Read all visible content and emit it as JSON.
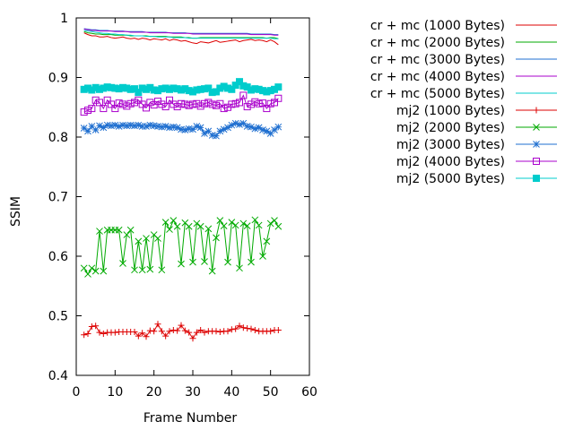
{
  "chart_data": {
    "type": "line",
    "title": "",
    "xlabel": "Frame Number",
    "ylabel": "SSIM",
    "xlim": [
      0,
      60
    ],
    "ylim": [
      0.4,
      1.0
    ],
    "x_ticks": [
      0,
      10,
      20,
      30,
      40,
      50,
      60
    ],
    "y_ticks": [
      0.4,
      0.5,
      0.6,
      0.7,
      0.8,
      0.9,
      1
    ],
    "x_tick_labels": [
      "0",
      "10",
      "20",
      "30",
      "40",
      "50",
      "60"
    ],
    "y_tick_labels": [
      "0.4",
      "0.5",
      "0.6",
      "0.7",
      "0.8",
      "0.9",
      "1"
    ],
    "grid": false,
    "legend_position": "top-right, outside plot",
    "x": [
      2,
      3,
      4,
      5,
      6,
      7,
      8,
      9,
      10,
      11,
      12,
      13,
      14,
      15,
      16,
      17,
      18,
      19,
      20,
      21,
      22,
      23,
      24,
      25,
      26,
      27,
      28,
      29,
      30,
      31,
      32,
      33,
      34,
      35,
      36,
      37,
      38,
      39,
      40,
      41,
      42,
      43,
      44,
      45,
      46,
      47,
      48,
      49,
      50,
      51,
      52
    ],
    "series": [
      {
        "name": "cr + mc (1000 Bytes)",
        "color": "#dd0000",
        "marker": "none",
        "values": [
          0.975,
          0.972,
          0.97,
          0.97,
          0.968,
          0.968,
          0.969,
          0.967,
          0.966,
          0.967,
          0.968,
          0.966,
          0.965,
          0.966,
          0.964,
          0.966,
          0.965,
          0.963,
          0.965,
          0.964,
          0.963,
          0.965,
          0.962,
          0.964,
          0.963,
          0.961,
          0.962,
          0.96,
          0.958,
          0.957,
          0.96,
          0.959,
          0.958,
          0.96,
          0.962,
          0.959,
          0.96,
          0.961,
          0.962,
          0.963,
          0.96,
          0.962,
          0.963,
          0.964,
          0.962,
          0.963,
          0.962,
          0.96,
          0.963,
          0.96,
          0.955
        ]
      },
      {
        "name": "cr + mc (2000 Bytes)",
        "color": "#00aa00",
        "marker": "none",
        "values": [
          0.977,
          0.975,
          0.974,
          0.973,
          0.973,
          0.972,
          0.972,
          0.972,
          0.971,
          0.971,
          0.971,
          0.971,
          0.97,
          0.97,
          0.97,
          0.97,
          0.97,
          0.969,
          0.969,
          0.969,
          0.969,
          0.969,
          0.968,
          0.968,
          0.968,
          0.968,
          0.967,
          0.967,
          0.966,
          0.966,
          0.967,
          0.967,
          0.967,
          0.967,
          0.967,
          0.967,
          0.967,
          0.967,
          0.967,
          0.967,
          0.967,
          0.967,
          0.967,
          0.967,
          0.967,
          0.967,
          0.967,
          0.966,
          0.967,
          0.967,
          0.965
        ]
      },
      {
        "name": "cr + mc (3000 Bytes)",
        "color": "#1f6fd0",
        "marker": "none",
        "values": [
          0.982,
          0.981,
          0.98,
          0.98,
          0.979,
          0.979,
          0.979,
          0.978,
          0.978,
          0.978,
          0.978,
          0.977,
          0.977,
          0.977,
          0.977,
          0.977,
          0.976,
          0.976,
          0.976,
          0.976,
          0.976,
          0.976,
          0.975,
          0.975,
          0.975,
          0.975,
          0.975,
          0.974,
          0.974,
          0.974,
          0.974,
          0.974,
          0.974,
          0.974,
          0.974,
          0.974,
          0.974,
          0.974,
          0.974,
          0.974,
          0.974,
          0.974,
          0.974,
          0.973,
          0.973,
          0.973,
          0.973,
          0.973,
          0.973,
          0.972,
          0.972
        ]
      },
      {
        "name": "cr + mc (4000 Bytes)",
        "color": "#aa00cc",
        "marker": "none",
        "values": [
          0.981,
          0.98,
          0.979,
          0.979,
          0.978,
          0.978,
          0.978,
          0.978,
          0.977,
          0.977,
          0.977,
          0.977,
          0.976,
          0.976,
          0.976,
          0.976,
          0.976,
          0.975,
          0.975,
          0.975,
          0.975,
          0.975,
          0.975,
          0.974,
          0.974,
          0.974,
          0.974,
          0.974,
          0.973,
          0.973,
          0.973,
          0.973,
          0.973,
          0.973,
          0.973,
          0.973,
          0.973,
          0.973,
          0.973,
          0.973,
          0.973,
          0.973,
          0.973,
          0.972,
          0.972,
          0.972,
          0.972,
          0.972,
          0.972,
          0.971,
          0.971
        ]
      },
      {
        "name": "cr + mc (5000 Bytes)",
        "color": "#00cccc",
        "marker": "none",
        "values": [
          0.979,
          0.978,
          0.977,
          0.976,
          0.975,
          0.974,
          0.974,
          0.973,
          0.973,
          0.972,
          0.972,
          0.971,
          0.971,
          0.97,
          0.97,
          0.97,
          0.969,
          0.969,
          0.969,
          0.968,
          0.968,
          0.968,
          0.968,
          0.967,
          0.967,
          0.967,
          0.967,
          0.966,
          0.966,
          0.966,
          0.966,
          0.966,
          0.966,
          0.966,
          0.966,
          0.966,
          0.966,
          0.966,
          0.966,
          0.966,
          0.966,
          0.966,
          0.966,
          0.966,
          0.966,
          0.966,
          0.966,
          0.966,
          0.966,
          0.965,
          0.965
        ]
      },
      {
        "name": "mj2 (1000 Bytes)",
        "color": "#dd0000",
        "marker": "plus",
        "values": [
          0.468,
          0.47,
          0.482,
          0.483,
          0.472,
          0.47,
          0.472,
          0.472,
          0.472,
          0.473,
          0.473,
          0.473,
          0.473,
          0.473,
          0.466,
          0.471,
          0.465,
          0.475,
          0.474,
          0.486,
          0.474,
          0.466,
          0.474,
          0.476,
          0.475,
          0.484,
          0.475,
          0.472,
          0.462,
          0.472,
          0.476,
          0.472,
          0.474,
          0.474,
          0.474,
          0.473,
          0.474,
          0.474,
          0.477,
          0.478,
          0.483,
          0.48,
          0.479,
          0.478,
          0.476,
          0.474,
          0.474,
          0.474,
          0.474,
          0.476,
          0.476
        ]
      },
      {
        "name": "mj2 (2000 Bytes)",
        "color": "#00aa00",
        "marker": "x",
        "values": [
          0.58,
          0.57,
          0.58,
          0.575,
          0.642,
          0.575,
          0.644,
          0.644,
          0.644,
          0.644,
          0.588,
          0.636,
          0.644,
          0.577,
          0.625,
          0.577,
          0.63,
          0.578,
          0.636,
          0.63,
          0.577,
          0.657,
          0.645,
          0.66,
          0.65,
          0.587,
          0.656,
          0.65,
          0.59,
          0.655,
          0.65,
          0.591,
          0.646,
          0.575,
          0.631,
          0.66,
          0.651,
          0.59,
          0.657,
          0.652,
          0.58,
          0.655,
          0.651,
          0.59,
          0.661,
          0.652,
          0.6,
          0.625,
          0.655,
          0.66,
          0.65
        ]
      },
      {
        "name": "mj2 (3000 Bytes)",
        "color": "#1f6fd0",
        "marker": "star",
        "values": [
          0.815,
          0.81,
          0.818,
          0.812,
          0.819,
          0.816,
          0.82,
          0.819,
          0.82,
          0.818,
          0.82,
          0.819,
          0.82,
          0.819,
          0.82,
          0.818,
          0.818,
          0.82,
          0.819,
          0.818,
          0.817,
          0.818,
          0.816,
          0.817,
          0.816,
          0.813,
          0.812,
          0.814,
          0.813,
          0.818,
          0.816,
          0.806,
          0.81,
          0.803,
          0.802,
          0.81,
          0.813,
          0.816,
          0.82,
          0.823,
          0.821,
          0.823,
          0.818,
          0.817,
          0.814,
          0.816,
          0.812,
          0.81,
          0.806,
          0.812,
          0.817
        ]
      },
      {
        "name": "mj2 (4000 Bytes)",
        "color": "#aa00cc",
        "marker": "box",
        "values": [
          0.842,
          0.845,
          0.848,
          0.862,
          0.858,
          0.848,
          0.862,
          0.855,
          0.848,
          0.857,
          0.855,
          0.852,
          0.856,
          0.858,
          0.862,
          0.855,
          0.849,
          0.858,
          0.854,
          0.86,
          0.855,
          0.851,
          0.862,
          0.855,
          0.851,
          0.856,
          0.855,
          0.853,
          0.855,
          0.856,
          0.852,
          0.856,
          0.858,
          0.855,
          0.853,
          0.856,
          0.848,
          0.85,
          0.855,
          0.856,
          0.858,
          0.87,
          0.851,
          0.855,
          0.859,
          0.856,
          0.857,
          0.848,
          0.856,
          0.858,
          0.865
        ]
      },
      {
        "name": "mj2 (5000 Bytes)",
        "color": "#00cccc",
        "marker": "filledbox",
        "values": [
          0.88,
          0.882,
          0.879,
          0.883,
          0.88,
          0.882,
          0.884,
          0.883,
          0.882,
          0.881,
          0.883,
          0.882,
          0.88,
          0.881,
          0.875,
          0.882,
          0.88,
          0.883,
          0.879,
          0.878,
          0.881,
          0.882,
          0.88,
          0.882,
          0.881,
          0.879,
          0.881,
          0.878,
          0.876,
          0.879,
          0.88,
          0.881,
          0.882,
          0.875,
          0.876,
          0.882,
          0.885,
          0.882,
          0.88,
          0.887,
          0.893,
          0.886,
          0.884,
          0.879,
          0.881,
          0.88,
          0.878,
          0.876,
          0.878,
          0.88,
          0.884
        ]
      }
    ]
  }
}
